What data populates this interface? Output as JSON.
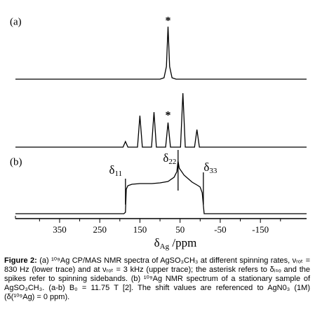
{
  "chart_data": {
    "type": "line",
    "panel_labels": [
      "(a)",
      "(b)"
    ],
    "xlim": [
      460,
      -265
    ],
    "xticks": [
      350,
      250,
      150,
      50,
      -50,
      -150
    ],
    "x_minor_ticks": [
      400,
      300,
      200,
      100,
      0,
      -100,
      -200
    ],
    "x_label": {
      "symbol": "δ",
      "sub": "Ag",
      "unit": " /ppm"
    },
    "color": "#000000",
    "series": [
      {
        "x": [
          460,
          100,
          90,
          84,
          80,
          76,
          70,
          60,
          -265
        ],
        "values": [
          0,
          0,
          2,
          18,
          75,
          18,
          2,
          0,
          0
        ]
      },
      {
        "x": [
          460,
          192,
          186,
          180,
          156,
          150,
          144,
          121,
          115,
          109,
          86,
          80,
          74,
          49,
          43,
          37,
          14,
          8,
          2,
          -265
        ],
        "values": [
          0,
          0,
          8,
          0,
          0,
          45,
          0,
          0,
          50,
          0,
          0,
          35,
          0,
          0,
          77,
          0,
          0,
          25,
          0,
          0
        ]
      },
      {
        "x": [
          460,
          190,
          186,
          184,
          180,
          170,
          150,
          120,
          100,
          80,
          65,
          58,
          55,
          52,
          40,
          20,
          5,
          0,
          -5,
          -10,
          -265
        ],
        "values": [
          0,
          0,
          2,
          35,
          40,
          42,
          43,
          43,
          44,
          46,
          52,
          60,
          75,
          65,
          55,
          45,
          40,
          38,
          30,
          0,
          0
        ]
      }
    ],
    "asterisks": [
      {
        "text": "*",
        "x": 80
      },
      {
        "text": "*",
        "x": 80
      }
    ],
    "peak_labels": [
      {
        "symbol": "δ",
        "sub": "11",
        "x": 186
      },
      {
        "symbol": "δ",
        "sub": "22",
        "x": 55
      },
      {
        "symbol": "δ",
        "sub": "33",
        "x": -8
      }
    ]
  },
  "caption": {
    "label": "Figure 2:",
    "text": " (a) ¹⁰⁹Ag CP/MAS NMR spectra of AgSO₃CH₃ at different spinning rates, νᵣₒₜ = 830 Hz (lower trace) and at νᵣₒₜ = 3 kHz (upper trace); the asterisk refers to δᵢₛₒ and the spikes refer to spinning sidebands. (b) ¹⁰⁹Ag NMR spectrum of a stationary sample of AgSO₃CH₃. (a-b) B₀ = 11.75 T [2]. The shift values are referenced to AgN0₃ (1M) (δ(¹⁰⁹Ag) = 0 ppm)."
  }
}
